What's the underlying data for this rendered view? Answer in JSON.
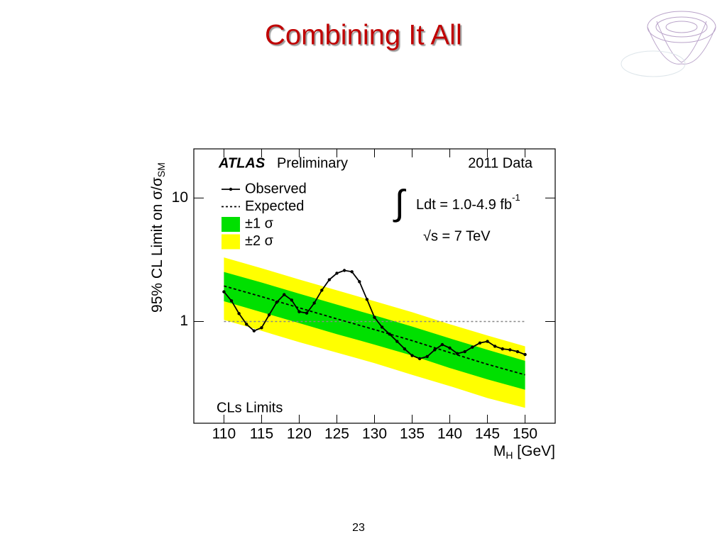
{
  "slide": {
    "title": "Combining It All",
    "page_number": "23"
  },
  "chart_data": {
    "type": "limit-bands",
    "experiment": "ATLAS",
    "status": "Preliminary",
    "dataset": "2011 Data",
    "integral_symbol": "∫",
    "luminosity": {
      "text": "Ldt = 1.0-4.9 fb",
      "sup": "-1"
    },
    "energy": "√s = 7 TeV",
    "method": "CLs Limits",
    "x_label": {
      "text": "M",
      "sub": "H",
      "rest": " [GeV]"
    },
    "y_label": {
      "text": "95% CL Limit on σ/σ",
      "sub": "SM"
    },
    "xlim": [
      106,
      154
    ],
    "xticks": [
      110,
      115,
      120,
      125,
      130,
      135,
      140,
      145,
      150
    ],
    "ylim": [
      0.15,
      25
    ],
    "yticks": [
      1,
      10
    ],
    "log_y": true,
    "reference_y": 1,
    "series": [
      {
        "name": "±2 σ",
        "kind": "band",
        "color": "#ffff00",
        "x": [
          110,
          115,
          120,
          125,
          130,
          135,
          140,
          145,
          150
        ],
        "upper": [
          3.3,
          2.7,
          2.19,
          1.79,
          1.46,
          1.19,
          0.95,
          0.77,
          0.63
        ],
        "lower": [
          1.03,
          0.84,
          0.68,
          0.56,
          0.46,
          0.37,
          0.3,
          0.24,
          0.2
        ]
      },
      {
        "name": "±1 σ",
        "kind": "band",
        "color": "#00e000",
        "x": [
          110,
          115,
          120,
          125,
          130,
          135,
          140,
          145,
          150
        ],
        "upper": [
          2.52,
          2.07,
          1.68,
          1.37,
          1.12,
          0.91,
          0.73,
          0.59,
          0.48
        ],
        "lower": [
          1.46,
          1.19,
          0.97,
          0.79,
          0.65,
          0.53,
          0.42,
          0.34,
          0.28
        ]
      },
      {
        "name": "Expected",
        "kind": "dashed",
        "color": "#000000",
        "x": [
          110,
          115,
          120,
          125,
          130,
          135,
          140,
          145,
          150
        ],
        "values": [
          1.94,
          1.59,
          1.29,
          1.05,
          0.86,
          0.7,
          0.56,
          0.45,
          0.37
        ]
      },
      {
        "name": "Observed",
        "kind": "markers",
        "color": "#000000",
        "x": [
          110,
          111,
          112,
          113,
          114,
          115,
          116,
          117,
          118,
          119,
          120,
          121,
          122,
          123,
          124,
          125,
          126,
          127,
          128,
          129,
          130,
          131,
          132,
          133,
          134,
          135,
          136,
          137,
          138,
          139,
          140,
          141,
          142,
          143,
          144,
          145,
          146,
          147,
          148,
          149,
          150
        ],
        "values": [
          1.74,
          1.47,
          1.16,
          0.95,
          0.84,
          0.89,
          1.13,
          1.43,
          1.65,
          1.49,
          1.2,
          1.17,
          1.41,
          1.79,
          2.18,
          2.46,
          2.59,
          2.53,
          2.1,
          1.51,
          1.08,
          0.9,
          0.79,
          0.69,
          0.6,
          0.53,
          0.5,
          0.52,
          0.59,
          0.65,
          0.61,
          0.55,
          0.57,
          0.62,
          0.67,
          0.69,
          0.63,
          0.6,
          0.59,
          0.57,
          0.54
        ]
      }
    ]
  }
}
